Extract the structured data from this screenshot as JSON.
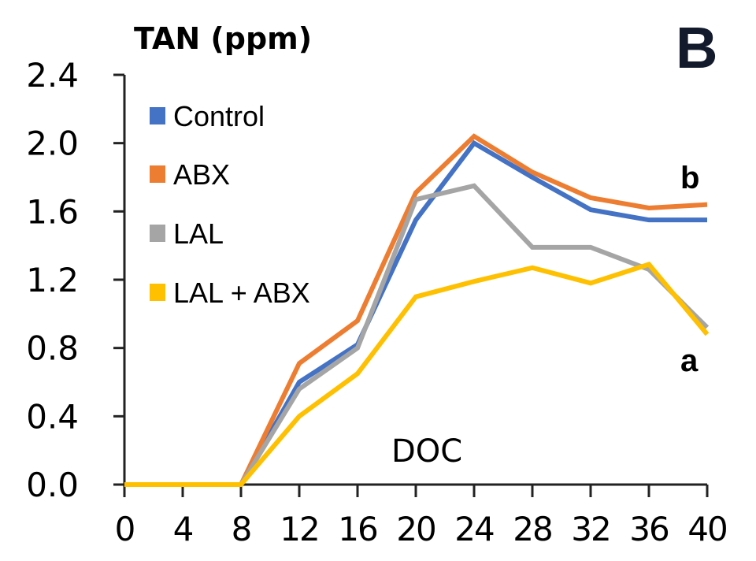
{
  "chart_data": {
    "type": "line",
    "panel_label": "B",
    "title": "TAN (ppm)",
    "xlabel": "DOC",
    "ylabel": "TAN (ppm)",
    "x": [
      0,
      4,
      8,
      12,
      16,
      20,
      24,
      28,
      32,
      36,
      40
    ],
    "xticks": [
      "0",
      "4",
      "8",
      "12",
      "16",
      "20",
      "24",
      "28",
      "32",
      "36",
      "40"
    ],
    "yticks": [
      "0.0",
      "0.4",
      "0.8",
      "1.2",
      "1.6",
      "2.0",
      "2.4"
    ],
    "xlim": [
      0,
      40
    ],
    "ylim": [
      0,
      2.4
    ],
    "grid": false,
    "legend_position": "top-left",
    "series": [
      {
        "name": "Control",
        "color": "#4472C4",
        "values": [
          0,
          0,
          0,
          0.6,
          0.82,
          1.55,
          2.0,
          1.8,
          1.61,
          1.55,
          1.55
        ]
      },
      {
        "name": "ABX",
        "color": "#ED7D31",
        "values": [
          0,
          0,
          0,
          0.71,
          0.96,
          1.71,
          2.04,
          1.83,
          1.68,
          1.62,
          1.64
        ]
      },
      {
        "name": "LAL",
        "color": "#A5A5A5",
        "values": [
          0,
          0,
          0,
          0.56,
          0.8,
          1.67,
          1.75,
          1.39,
          1.39,
          1.26,
          0.92
        ]
      },
      {
        "name": "LAL + ABX",
        "color": "#FFC000",
        "values": [
          0,
          0,
          0,
          0.4,
          0.65,
          1.1,
          1.19,
          1.27,
          1.18,
          1.29,
          0.88
        ]
      }
    ],
    "annotations": [
      {
        "text": "b",
        "refers_to": [
          "Control",
          "ABX"
        ]
      },
      {
        "text": "a",
        "refers_to": [
          "LAL",
          "LAL + ABX"
        ]
      }
    ]
  }
}
